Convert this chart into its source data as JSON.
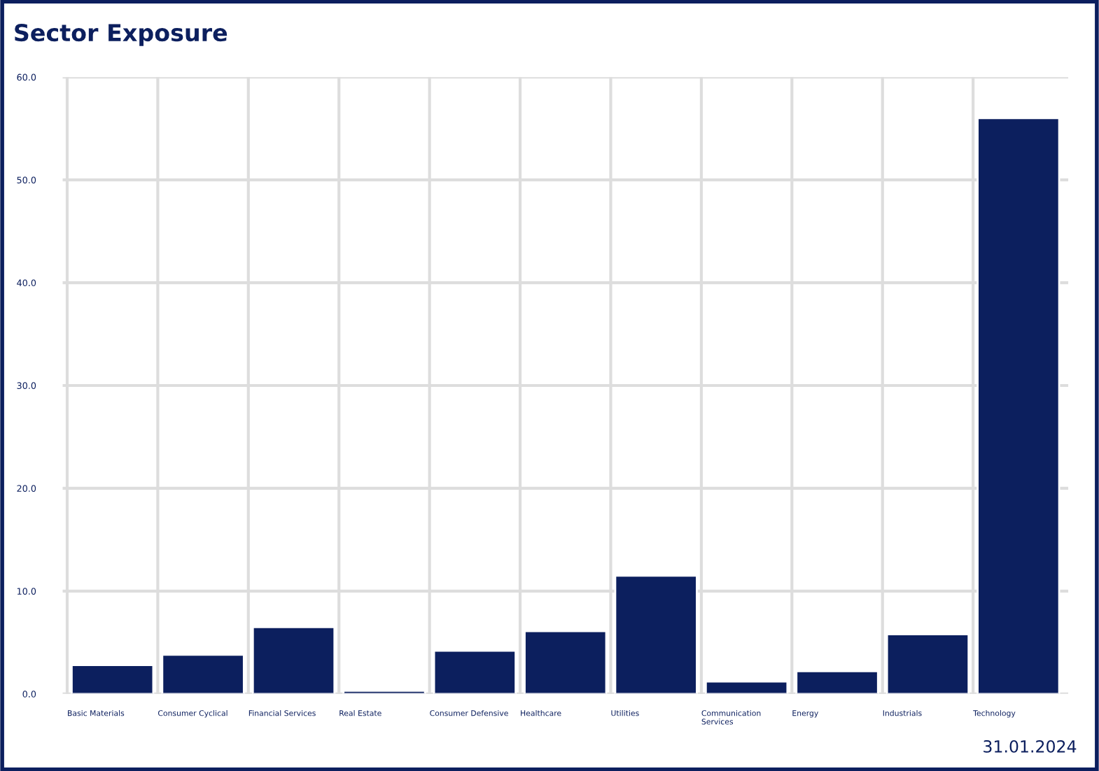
{
  "chart_data": {
    "type": "bar",
    "title": "Sector Exposure",
    "categories": [
      "Basic Materials",
      "Consumer Cyclical",
      "Financial Services",
      "Real Estate",
      "Consumer Defensive",
      "Healthcare",
      "Utilities",
      "Communication Services",
      "Energy",
      "Industrials",
      "Technology"
    ],
    "series": [
      {
        "color": "#0c1f5e",
        "values": [
          2.8,
          3.8,
          6.5,
          0.3,
          4.2,
          6.1,
          11.5,
          1.2,
          2.2,
          5.8,
          56.0
        ]
      }
    ],
    "ylim": [
      0,
      60
    ],
    "yticks": [
      {
        "value": 0,
        "label": "0.0"
      },
      {
        "value": 10,
        "label": "10.0"
      },
      {
        "value": 20,
        "label": "20.0"
      },
      {
        "value": 30,
        "label": "30.0"
      },
      {
        "value": 40,
        "label": "40.0"
      },
      {
        "value": 50,
        "label": "50.0"
      },
      {
        "value": 60,
        "label": "60.0"
      }
    ],
    "grid": true,
    "legend": false,
    "annotations": [
      "31.01.2024"
    ]
  }
}
